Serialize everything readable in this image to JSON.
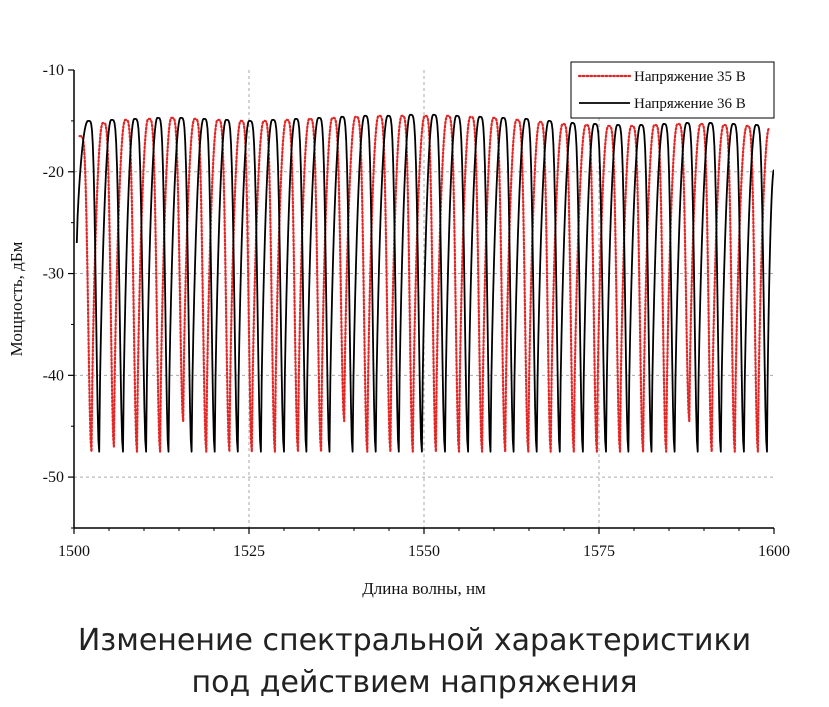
{
  "chart_data": {
    "type": "line",
    "xlabel": "Длина волны, нм",
    "ylabel": "Мощность, дБм",
    "xlim": [
      1500,
      1600
    ],
    "ylim": [
      -55,
      -10
    ],
    "x_ticks": [
      1500,
      1525,
      1550,
      1575,
      1600
    ],
    "y_ticks": [
      -10,
      -20,
      -30,
      -40,
      -50
    ],
    "x_tick_labels": [
      "1500",
      "1525",
      "1550",
      "1575",
      "1600"
    ],
    "y_tick_labels": [
      "-10",
      "-20",
      "-30",
      "-40",
      "-50"
    ],
    "grid": "dashed",
    "legend_position": "top-right",
    "series": [
      {
        "name": "Напряжение 35 В",
        "color": "#e32626",
        "style": "dotted",
        "peaks": [
          {
            "x": 1500.8,
            "y": -16.5
          },
          {
            "x": 1504.1,
            "y": -15.2
          },
          {
            "x": 1507.3,
            "y": -14.9
          },
          {
            "x": 1510.6,
            "y": -14.8
          },
          {
            "x": 1513.9,
            "y": -14.7
          },
          {
            "x": 1517.2,
            "y": -14.8
          },
          {
            "x": 1520.5,
            "y": -14.9
          },
          {
            "x": 1523.8,
            "y": -15.0
          },
          {
            "x": 1527.1,
            "y": -15.0
          },
          {
            "x": 1530.3,
            "y": -14.9
          },
          {
            "x": 1533.6,
            "y": -14.8
          },
          {
            "x": 1536.9,
            "y": -14.7
          },
          {
            "x": 1540.2,
            "y": -14.6
          },
          {
            "x": 1543.5,
            "y": -14.5
          },
          {
            "x": 1546.8,
            "y": -14.5
          },
          {
            "x": 1550.1,
            "y": -14.5
          },
          {
            "x": 1553.3,
            "y": -14.5
          },
          {
            "x": 1556.6,
            "y": -14.6
          },
          {
            "x": 1559.9,
            "y": -14.7
          },
          {
            "x": 1563.2,
            "y": -14.9
          },
          {
            "x": 1566.5,
            "y": -15.1
          },
          {
            "x": 1569.8,
            "y": -15.3
          },
          {
            "x": 1573.1,
            "y": -15.4
          },
          {
            "x": 1576.3,
            "y": -15.5
          },
          {
            "x": 1579.6,
            "y": -15.5
          },
          {
            "x": 1582.9,
            "y": -15.4
          },
          {
            "x": 1586.2,
            "y": -15.3
          },
          {
            "x": 1589.5,
            "y": -15.3
          },
          {
            "x": 1592.8,
            "y": -15.4
          },
          {
            "x": 1596.1,
            "y": -15.5
          },
          {
            "x": 1599.3,
            "y": -15.7
          }
        ],
        "troughs": [
          {
            "x": 1502.5,
            "y": -47.5
          },
          {
            "x": 1505.7,
            "y": -47.0
          },
          {
            "x": 1509.0,
            "y": -47.5
          },
          {
            "x": 1512.3,
            "y": -47.5
          },
          {
            "x": 1515.6,
            "y": -44.5
          },
          {
            "x": 1518.9,
            "y": -47.5
          },
          {
            "x": 1522.2,
            "y": -47.5
          },
          {
            "x": 1525.4,
            "y": -47.5
          },
          {
            "x": 1528.7,
            "y": -47.5
          },
          {
            "x": 1532.0,
            "y": -47.5
          },
          {
            "x": 1535.3,
            "y": -47.5
          },
          {
            "x": 1538.6,
            "y": -44.5
          },
          {
            "x": 1541.9,
            "y": -47.5
          },
          {
            "x": 1545.2,
            "y": -47.5
          },
          {
            "x": 1548.4,
            "y": -47.5
          },
          {
            "x": 1551.7,
            "y": -47.5
          },
          {
            "x": 1555.0,
            "y": -47.5
          },
          {
            "x": 1558.3,
            "y": -47.5
          },
          {
            "x": 1561.6,
            "y": -47.5
          },
          {
            "x": 1564.9,
            "y": -47.5
          },
          {
            "x": 1568.1,
            "y": -47.5
          },
          {
            "x": 1571.4,
            "y": -47.5
          },
          {
            "x": 1574.7,
            "y": -47.5
          },
          {
            "x": 1578.0,
            "y": -47.5
          },
          {
            "x": 1581.3,
            "y": -47.5
          },
          {
            "x": 1584.6,
            "y": -47.5
          },
          {
            "x": 1587.9,
            "y": -44.5
          },
          {
            "x": 1591.1,
            "y": -47.5
          },
          {
            "x": 1594.4,
            "y": -47.5
          },
          {
            "x": 1597.7,
            "y": -47.5
          }
        ]
      },
      {
        "name": "Напряжение 36 В",
        "color": "#000000",
        "style": "solid",
        "peaks": [
          {
            "x": 1502.0,
            "y": -15.0
          },
          {
            "x": 1505.3,
            "y": -14.9
          },
          {
            "x": 1508.6,
            "y": -14.8
          },
          {
            "x": 1511.9,
            "y": -14.7
          },
          {
            "x": 1515.2,
            "y": -14.7
          },
          {
            "x": 1518.5,
            "y": -14.8
          },
          {
            "x": 1521.7,
            "y": -14.9
          },
          {
            "x": 1525.0,
            "y": -15.0
          },
          {
            "x": 1528.3,
            "y": -14.9
          },
          {
            "x": 1531.6,
            "y": -14.8
          },
          {
            "x": 1534.9,
            "y": -14.7
          },
          {
            "x": 1538.2,
            "y": -14.6
          },
          {
            "x": 1541.5,
            "y": -14.5
          },
          {
            "x": 1544.8,
            "y": -14.5
          },
          {
            "x": 1548.0,
            "y": -14.4
          },
          {
            "x": 1551.3,
            "y": -14.4
          },
          {
            "x": 1554.6,
            "y": -14.5
          },
          {
            "x": 1557.9,
            "y": -14.6
          },
          {
            "x": 1561.2,
            "y": -14.7
          },
          {
            "x": 1564.5,
            "y": -14.8
          },
          {
            "x": 1567.8,
            "y": -15.0
          },
          {
            "x": 1571.1,
            "y": -15.2
          },
          {
            "x": 1574.3,
            "y": -15.3
          },
          {
            "x": 1577.6,
            "y": -15.4
          },
          {
            "x": 1580.9,
            "y": -15.4
          },
          {
            "x": 1584.2,
            "y": -15.3
          },
          {
            "x": 1587.5,
            "y": -15.2
          },
          {
            "x": 1590.8,
            "y": -15.2
          },
          {
            "x": 1594.1,
            "y": -15.3
          },
          {
            "x": 1597.4,
            "y": -15.4
          }
        ],
        "troughs": [
          {
            "x": 1500.4,
            "y": -27.0
          },
          {
            "x": 1503.6,
            "y": -47.5
          },
          {
            "x": 1507.0,
            "y": -47.5
          },
          {
            "x": 1510.3,
            "y": -47.5
          },
          {
            "x": 1513.5,
            "y": -47.5
          },
          {
            "x": 1516.8,
            "y": -47.5
          },
          {
            "x": 1520.1,
            "y": -47.5
          },
          {
            "x": 1523.4,
            "y": -47.5
          },
          {
            "x": 1526.7,
            "y": -47.5
          },
          {
            "x": 1530.0,
            "y": -47.5
          },
          {
            "x": 1533.2,
            "y": -47.5
          },
          {
            "x": 1536.5,
            "y": -47.5
          },
          {
            "x": 1539.8,
            "y": -47.5
          },
          {
            "x": 1543.1,
            "y": -47.5
          },
          {
            "x": 1546.4,
            "y": -47.5
          },
          {
            "x": 1549.7,
            "y": -47.5
          },
          {
            "x": 1553.0,
            "y": -47.5
          },
          {
            "x": 1556.3,
            "y": -47.5
          },
          {
            "x": 1559.5,
            "y": -47.5
          },
          {
            "x": 1562.8,
            "y": -47.5
          },
          {
            "x": 1566.1,
            "y": -47.5
          },
          {
            "x": 1569.4,
            "y": -47.5
          },
          {
            "x": 1572.7,
            "y": -47.5
          },
          {
            "x": 1576.0,
            "y": -47.5
          },
          {
            "x": 1579.2,
            "y": -47.5
          },
          {
            "x": 1582.5,
            "y": -47.5
          },
          {
            "x": 1585.8,
            "y": -47.5
          },
          {
            "x": 1589.1,
            "y": -47.5
          },
          {
            "x": 1592.4,
            "y": -47.5
          },
          {
            "x": 1595.7,
            "y": -47.5
          },
          {
            "x": 1599.0,
            "y": -47.5
          }
        ],
        "end_point": {
          "x": 1600,
          "y": -19.8
        }
      }
    ]
  },
  "caption": {
    "line1": "Изменение спектральной характеристики",
    "line2": "под действием напряжения"
  }
}
